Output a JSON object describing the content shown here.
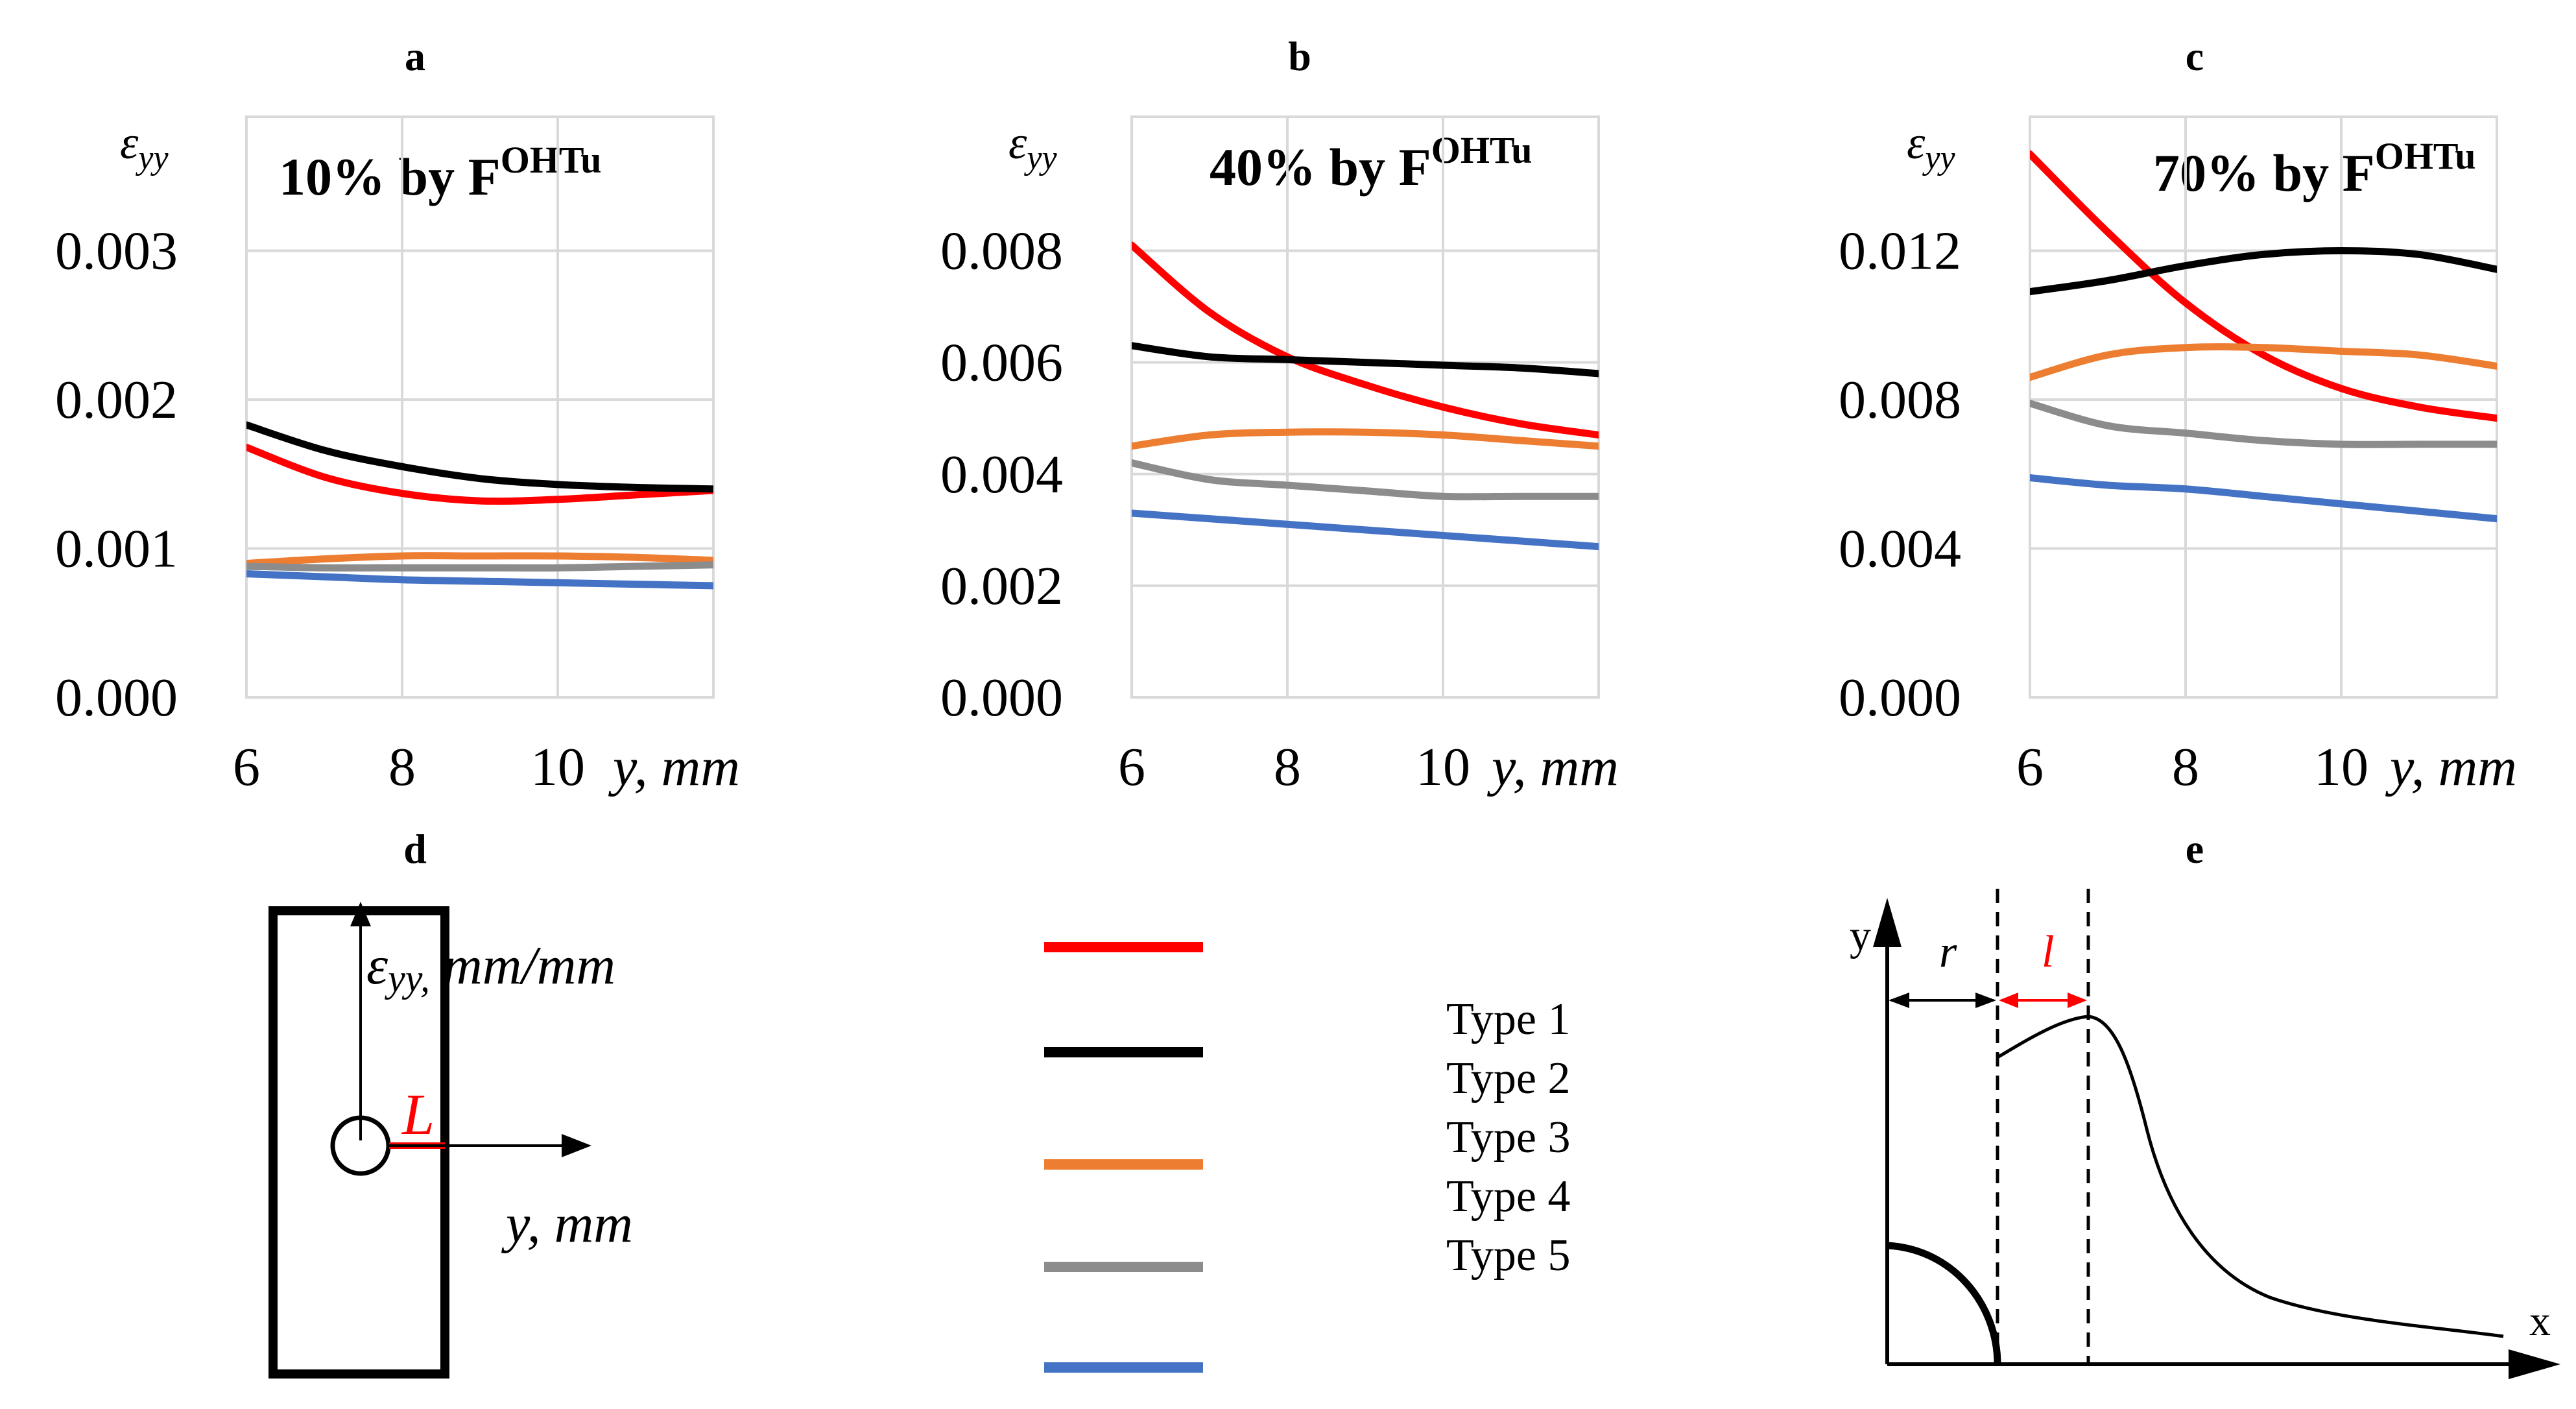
{
  "panels_labels": {
    "a": "a",
    "b": "b",
    "c": "c",
    "d": "d",
    "e": "e"
  },
  "chart_data": [
    {
      "type": "line",
      "panel": "a",
      "title_main": "10% by F",
      "title_sup": "OHTu",
      "ylabel": "ε",
      "ylabel_sub": "yy",
      "xlabel": "y, mm",
      "xlim": [
        6,
        12
      ],
      "ylim": [
        0,
        0.003
      ],
      "xticks": [
        6,
        8,
        10
      ],
      "xtick_labels": [
        "6",
        "8",
        "10"
      ],
      "yticks": [
        0,
        0.001,
        0.002,
        0.003
      ],
      "ytick_labels": [
        "0.000",
        "0.001",
        "0.002",
        "0.003"
      ],
      "grid": true,
      "series": [
        {
          "color": "#ff0000",
          "x": [
            6,
            7,
            8,
            9,
            10,
            11,
            12
          ],
          "y": [
            0.00168,
            0.00148,
            0.00137,
            0.00132,
            0.00133,
            0.00136,
            0.00139
          ]
        },
        {
          "color": "#000000",
          "x": [
            6,
            7,
            8,
            9,
            10,
            11,
            12
          ],
          "y": [
            0.00183,
            0.00166,
            0.00155,
            0.00147,
            0.00143,
            0.00141,
            0.0014
          ]
        },
        {
          "color": "#ed7d31",
          "x": [
            6,
            7,
            8,
            9,
            10,
            11,
            12
          ],
          "y": [
            0.0009,
            0.00093,
            0.00095,
            0.00095,
            0.00095,
            0.00094,
            0.00092
          ]
        },
        {
          "color": "#8c8c8c",
          "x": [
            6,
            7,
            8,
            9,
            10,
            11,
            12
          ],
          "y": [
            0.00088,
            0.00087,
            0.00087,
            0.00087,
            0.00087,
            0.00088,
            0.00089
          ]
        },
        {
          "color": "#4472c4",
          "x": [
            6,
            7,
            8,
            9,
            10,
            11,
            12
          ],
          "y": [
            0.00083,
            0.00081,
            0.00079,
            0.00078,
            0.00077,
            0.00076,
            0.00075
          ]
        }
      ]
    },
    {
      "type": "line",
      "panel": "b",
      "title_main": "40% by F",
      "title_sup": "OHTu",
      "ylabel": "ε",
      "ylabel_sub": "yy",
      "xlabel": "y, mm",
      "xlim": [
        6,
        12
      ],
      "ylim": [
        0,
        0.008
      ],
      "xticks": [
        6,
        8,
        10
      ],
      "xtick_labels": [
        "6",
        "8",
        "10"
      ],
      "yticks": [
        0,
        0.002,
        0.004,
        0.006,
        0.008
      ],
      "ytick_labels": [
        "0.000",
        "0.002",
        "0.004",
        "0.006",
        "0.008"
      ],
      "grid": true,
      "series": [
        {
          "color": "#ff0000",
          "x": [
            6,
            7,
            8,
            9,
            10,
            11,
            12
          ],
          "y": [
            0.0081,
            0.0069,
            0.0061,
            0.0056,
            0.0052,
            0.0049,
            0.0047
          ]
        },
        {
          "color": "#000000",
          "x": [
            6,
            7,
            8,
            9,
            10,
            11,
            12
          ],
          "y": [
            0.0063,
            0.0061,
            0.00605,
            0.006,
            0.00595,
            0.0059,
            0.0058
          ]
        },
        {
          "color": "#ed7d31",
          "x": [
            6,
            7,
            8,
            9,
            10,
            11,
            12
          ],
          "y": [
            0.0045,
            0.0047,
            0.00475,
            0.00475,
            0.0047,
            0.0046,
            0.0045
          ]
        },
        {
          "color": "#8c8c8c",
          "x": [
            6,
            7,
            8,
            9,
            10,
            11,
            12
          ],
          "y": [
            0.0042,
            0.0039,
            0.0038,
            0.0037,
            0.0036,
            0.0036,
            0.0036
          ]
        },
        {
          "color": "#4472c4",
          "x": [
            6,
            7,
            8,
            9,
            10,
            11,
            12
          ],
          "y": [
            0.0033,
            0.0032,
            0.0031,
            0.003,
            0.0029,
            0.0028,
            0.0027
          ]
        }
      ]
    },
    {
      "type": "line",
      "panel": "c",
      "title_main": "70% by F",
      "title_sup": "OHTu",
      "ylabel": "ε",
      "ylabel_sub": "yy",
      "xlabel": "y, mm",
      "xlim": [
        6,
        12
      ],
      "ylim": [
        0,
        0.012
      ],
      "xticks": [
        6,
        8,
        10
      ],
      "xtick_labels": [
        "6",
        "8",
        "10"
      ],
      "yticks": [
        0,
        0.004,
        0.008,
        0.012
      ],
      "ytick_labels": [
        "0.000",
        "0.004",
        "0.008",
        "0.012"
      ],
      "grid": true,
      "series": [
        {
          "color": "#ff0000",
          "x": [
            6,
            7,
            8,
            9,
            10,
            11,
            12
          ],
          "y": [
            0.0146,
            0.0125,
            0.0106,
            0.0092,
            0.0083,
            0.0078,
            0.0075
          ]
        },
        {
          "color": "#000000",
          "x": [
            6,
            7,
            8,
            9,
            10,
            11,
            12
          ],
          "y": [
            0.0109,
            0.0112,
            0.0116,
            0.0119,
            0.012,
            0.0119,
            0.0115
          ]
        },
        {
          "color": "#ed7d31",
          "x": [
            6,
            7,
            8,
            9,
            10,
            11,
            12
          ],
          "y": [
            0.0086,
            0.0092,
            0.0094,
            0.0094,
            0.0093,
            0.0092,
            0.0089
          ]
        },
        {
          "color": "#8c8c8c",
          "x": [
            6,
            7,
            8,
            9,
            10,
            11,
            12
          ],
          "y": [
            0.0079,
            0.0073,
            0.0071,
            0.0069,
            0.0068,
            0.0068,
            0.0068
          ]
        },
        {
          "color": "#4472c4",
          "x": [
            6,
            7,
            8,
            9,
            10,
            11,
            12
          ],
          "y": [
            0.0059,
            0.0057,
            0.0056,
            0.0054,
            0.0052,
            0.005,
            0.0048
          ]
        }
      ]
    }
  ],
  "legend": {
    "entries": [
      {
        "label": "Type 1",
        "color": "#ff0000"
      },
      {
        "label": "Type 2",
        "color": "#000000"
      },
      {
        "label": "Type 3",
        "color": "#ed7d31"
      },
      {
        "label": "Type 4",
        "color": "#8c8c8c"
      },
      {
        "label": "Type 5",
        "color": "#4472c4"
      }
    ]
  },
  "diagram_d": {
    "eps_label": "ε",
    "eps_sub": "yy,",
    "eps_unit": "mm/mm",
    "marker": "L",
    "axis_label": "y, mm"
  },
  "diagram_e": {
    "y_label": "y",
    "x_label": "x",
    "r_label": "r",
    "l_label": "l"
  }
}
